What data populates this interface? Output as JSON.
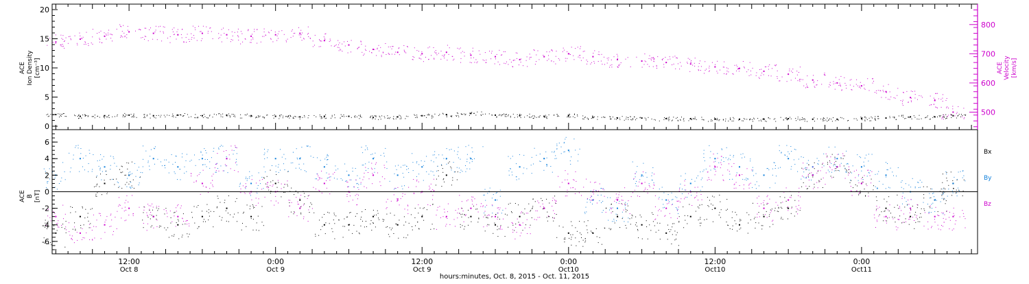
{
  "colors": {
    "black": "#000000",
    "magenta": "#cc00cc",
    "blue": "#0f7fdb"
  },
  "x_axis": {
    "label": "hours:minutes, Oct.  8, 2015 - Oct. 11, 2015",
    "ticks": [
      {
        "time": "12:00",
        "date": "Oct 8"
      },
      {
        "time": "0:00",
        "date": "Oct 9"
      },
      {
        "time": "12:00",
        "date": "Oct 9"
      },
      {
        "time": "0:00",
        "date": "Oct10"
      },
      {
        "time": "12:00",
        "date": "Oct10"
      },
      {
        "time": "0:00",
        "date": "Oct11"
      }
    ]
  },
  "top_panel": {
    "left_label": [
      "ACE",
      "Ion Density",
      "[cm⁻³]"
    ],
    "right_label": [
      "ACE",
      "Velocity",
      "[km/s]"
    ],
    "y_ticks": [
      "0",
      "5",
      "10",
      "15",
      "20"
    ],
    "y2_ticks": [
      "500",
      "600",
      "700",
      "800"
    ]
  },
  "bottom_panel": {
    "left_label": [
      "ACE",
      "B",
      "[nT]"
    ],
    "y_ticks": [
      "-6",
      "-4",
      "-2",
      "0",
      "2",
      "4",
      "6"
    ],
    "legend": {
      "bx": "Bx",
      "by": "By",
      "bz": "Bz"
    }
  },
  "chart_data": [
    {
      "type": "scatter",
      "panel": "top",
      "x_unit": "hours since Oct 8 2015 00:00 UT",
      "xlim": [
        5.7,
        81.5
      ],
      "ylim": [
        0,
        20
      ],
      "ylim_right": [
        440,
        870
      ],
      "series": [
        {
          "name": "Ion Density",
          "axis": "left",
          "color": "#000000",
          "x": [
            6,
            8,
            10,
            12,
            14,
            16,
            18,
            20,
            22,
            24,
            26,
            28,
            30,
            32,
            34,
            36,
            38,
            40,
            42,
            44,
            46,
            48,
            50,
            52,
            54,
            56,
            58,
            60,
            62,
            64,
            66,
            68,
            70,
            72,
            74,
            76,
            78,
            79.5
          ],
          "y": [
            2.0,
            1.7,
            1.8,
            1.9,
            1.8,
            1.9,
            1.8,
            1.9,
            1.8,
            1.7,
            1.6,
            1.7,
            1.7,
            1.5,
            1.6,
            1.8,
            2.0,
            2.2,
            1.9,
            1.8,
            1.7,
            1.8,
            1.5,
            1.4,
            1.4,
            1.3,
            1.3,
            1.2,
            1.2,
            1.2,
            1.3,
            1.2,
            1.2,
            1.3,
            1.4,
            1.6,
            1.6,
            1.8
          ]
        },
        {
          "name": "Velocity",
          "axis": "right",
          "color": "#cc00cc",
          "x": [
            6,
            8,
            10,
            12,
            14,
            16,
            18,
            20,
            22,
            24,
            26,
            28,
            30,
            32,
            34,
            36,
            38,
            40,
            42,
            44,
            46,
            48,
            50,
            52,
            54,
            56,
            58,
            60,
            62,
            64,
            66,
            68,
            70,
            72,
            74,
            76,
            78,
            79.5
          ],
          "y": [
            740,
            750,
            760,
            775,
            770,
            765,
            770,
            765,
            760,
            765,
            770,
            745,
            730,
            715,
            705,
            700,
            705,
            695,
            690,
            680,
            690,
            700,
            690,
            680,
            675,
            670,
            665,
            655,
            650,
            640,
            630,
            610,
            600,
            590,
            570,
            550,
            540,
            500
          ]
        }
      ]
    },
    {
      "type": "scatter",
      "panel": "bottom",
      "x_unit": "hours since Oct 8 2015 00:00 UT",
      "xlim": [
        5.7,
        81.5
      ],
      "ylim": [
        -7.5,
        7.5
      ],
      "series": [
        {
          "name": "Bx",
          "color": "#000000",
          "x": [
            6,
            8,
            10,
            12,
            14,
            16,
            18,
            20,
            22,
            24,
            26,
            28,
            30,
            32,
            34,
            36,
            38,
            40,
            42,
            44,
            46,
            48,
            50,
            52,
            54,
            56,
            58,
            60,
            62,
            64,
            66,
            68,
            70,
            72,
            74,
            76,
            78,
            79.5
          ],
          "y": [
            -5,
            -3,
            1,
            2,
            -3,
            -4,
            -3,
            -2,
            -3,
            1,
            -1,
            -4,
            -4,
            -3,
            -4,
            -3,
            2,
            -3,
            -4,
            -3,
            -2,
            -5,
            -5,
            -3,
            -4,
            -5,
            -3,
            -2,
            -4,
            -3,
            -2,
            2,
            3,
            1,
            -2,
            -3,
            -1,
            1
          ]
        },
        {
          "name": "By",
          "color": "#0f7fdb",
          "x": [
            6,
            8,
            10,
            12,
            14,
            16,
            18,
            20,
            22,
            24,
            26,
            28,
            30,
            32,
            34,
            36,
            38,
            40,
            42,
            44,
            46,
            48,
            50,
            52,
            54,
            56,
            58,
            60,
            62,
            64,
            66,
            68,
            70,
            72,
            74,
            76,
            78,
            79.5
          ],
          "y": [
            2,
            4,
            3,
            2,
            4,
            3,
            4,
            4,
            1,
            4,
            4,
            3,
            2,
            4,
            2,
            3,
            4,
            4,
            -1,
            3,
            4,
            5,
            -1,
            -2,
            2,
            -1,
            1,
            4,
            3,
            2,
            4,
            3,
            4,
            3,
            2,
            0,
            -1,
            1
          ]
        },
        {
          "name": "Bz",
          "color": "#cc00cc",
          "x": [
            6,
            8,
            10,
            12,
            14,
            16,
            18,
            20,
            22,
            24,
            26,
            28,
            30,
            32,
            34,
            36,
            38,
            40,
            42,
            44,
            46,
            48,
            50,
            52,
            54,
            56,
            58,
            60,
            62,
            64,
            66,
            68,
            70,
            72,
            74,
            76,
            78,
            79.5
          ],
          "y": [
            -3,
            -5,
            -4,
            -2,
            -3,
            -3,
            1,
            4,
            0,
            0,
            -2,
            1,
            0,
            2,
            -1,
            0,
            -3,
            -2,
            -3,
            -4,
            -2,
            1,
            0,
            -1,
            1,
            -2,
            0,
            3,
            2,
            -2,
            -1,
            2,
            3,
            1,
            -3,
            -2,
            -3,
            -3
          ]
        }
      ]
    }
  ]
}
